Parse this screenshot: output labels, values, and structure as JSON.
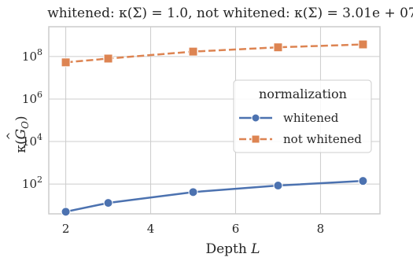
{
  "colors": {
    "whitened": "#4c72b0",
    "not_whitened": "#dd8452",
    "grid": "#cccccc",
    "frame": "#cccccc",
    "background": "#ffffff"
  },
  "chart_data": {
    "type": "line",
    "title": "whitened: κ(Σ) = 1.0, not whitened: κ(Σ) = 3.01e + 07",
    "xlabel": "Depth L",
    "ylabel": "κ(Ĝ_O)",
    "xlim": [
      1.6,
      9.4
    ],
    "ylim_log10": [
      0.6,
      9.4
    ],
    "yscale": "log",
    "grid": true,
    "x_ticks": [
      2,
      4,
      6,
      8
    ],
    "y_ticks": [
      {
        "exp": 2,
        "label": "10^2"
      },
      {
        "exp": 4,
        "label": "10^4"
      },
      {
        "exp": 6,
        "label": "10^6"
      },
      {
        "exp": 8,
        "label": "10^8"
      }
    ],
    "legend": {
      "title": "normalization",
      "position": "center-right"
    },
    "series": [
      {
        "name": "whitened",
        "marker": "circle",
        "linestyle": "solid",
        "x": [
          2,
          3,
          5,
          7,
          9
        ],
        "y": [
          5,
          13,
          42,
          85,
          140
        ]
      },
      {
        "name": "not whitened",
        "marker": "square",
        "linestyle": "dashed",
        "x": [
          2,
          3,
          5,
          7,
          9
        ],
        "y": [
          53000000,
          80000000,
          170000000,
          270000000,
          370000000
        ]
      }
    ]
  }
}
